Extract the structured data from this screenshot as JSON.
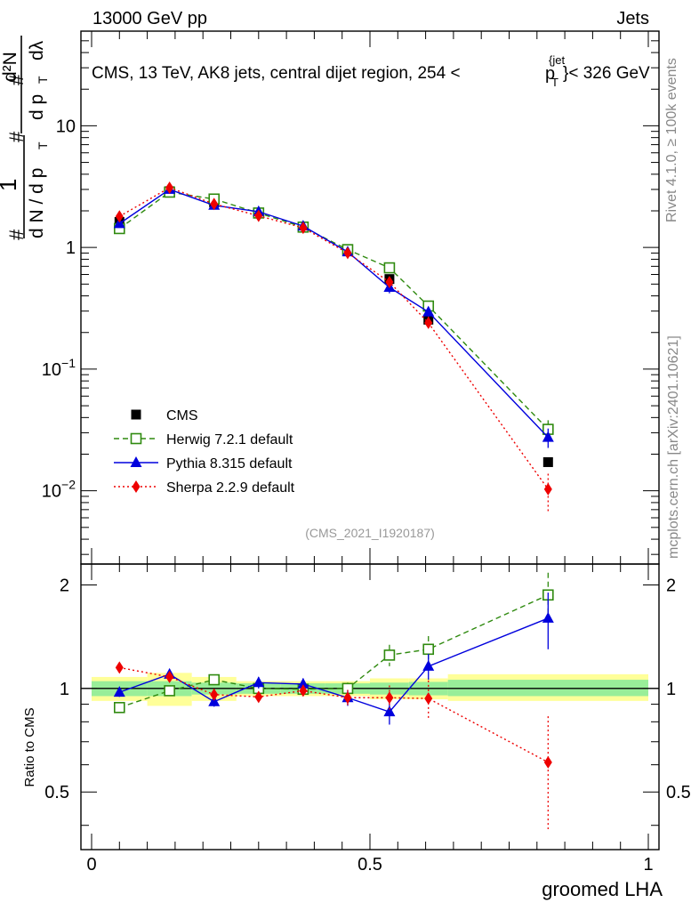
{
  "header": {
    "energy_label": "13000 GeV pp",
    "category_label": "Jets"
  },
  "side_labels": {
    "rivet": "Rivet 4.1.0, ≥ 100k events",
    "mcplots": "mcplots.cern.ch [arXiv:2401.10621]"
  },
  "chart_data": [
    {
      "type": "line",
      "title": "CMS, 13 TeV, AK8 jets, central dijet region, 254 < p_T^{jet} < 326 GeV",
      "title_parts": {
        "prefix": "CMS, 13 TeV, AK8 jets, central dijet region, 254 <",
        "p": "p",
        "sub": "T",
        "sup": "{jet",
        "suffix": "}< 326 GeV"
      },
      "ylabel": "1/dN/dp_T  d²N/dp_T dλ",
      "ylabel_glyphs": {
        "hash": "#",
        "one": "1",
        "dN": "d N / d p",
        "T": "T",
        "d2N": "d²N",
        "dpT": "d p",
        "dlam": "dλ"
      },
      "xlabel": "groomed LHA",
      "xlim": [
        0,
        1
      ],
      "ylim": [
        0.0025,
        60
      ],
      "yscale": "log",
      "y_ticks": [
        {
          "value": 0.01,
          "base": "10",
          "exp": "−2"
        },
        {
          "value": 0.1,
          "base": "10",
          "exp": "−1"
        },
        {
          "value": 1,
          "base": "1",
          "exp": ""
        },
        {
          "value": 10,
          "base": "10",
          "exp": ""
        }
      ],
      "watermark": "(CMS_2021_I1920187)",
      "x": [
        0.05,
        0.14,
        0.22,
        0.3,
        0.38,
        0.46,
        0.535,
        0.605,
        0.82
      ],
      "series": [
        {
          "name": "CMS",
          "marker": "square",
          "color": "#000000",
          "dash": "none",
          "values": [
            1.62,
            2.9,
            2.35,
            1.92,
            1.48,
            0.96,
            0.55,
            0.255,
            0.0172
          ],
          "errors": [
            0,
            0,
            0,
            0,
            0,
            0,
            0,
            0,
            0
          ]
        },
        {
          "name": "Herwig 7.2.1 default",
          "marker": "open-square",
          "color": "#2f8a0f",
          "dash": "6,4",
          "values": [
            1.43,
            2.85,
            2.5,
            1.92,
            1.47,
            0.96,
            0.68,
            0.33,
            0.032
          ],
          "errors": [
            0.05,
            0.08,
            0.08,
            0.06,
            0.05,
            0.04,
            0.05,
            0.03,
            0.006
          ]
        },
        {
          "name": "Pythia 8.315 default",
          "marker": "triangle",
          "color": "#0000dd",
          "dash": "none",
          "values": [
            1.57,
            3.0,
            2.22,
            1.97,
            1.5,
            0.92,
            0.47,
            0.295,
            0.0275
          ],
          "errors": [
            0.05,
            0.08,
            0.07,
            0.06,
            0.05,
            0.04,
            0.05,
            0.03,
            0.005
          ]
        },
        {
          "name": "Sherpa 2.2.9 default",
          "marker": "diamond",
          "color": "#ee0000",
          "dash": "2,3",
          "values": [
            1.8,
            3.1,
            2.28,
            1.82,
            1.45,
            0.9,
            0.52,
            0.24,
            0.0103
          ],
          "errors": [
            0.05,
            0.09,
            0.07,
            0.06,
            0.05,
            0.04,
            0.05,
            0.03,
            0.0035
          ]
        }
      ],
      "legend": [
        "CMS",
        "Herwig 7.2.1 default",
        "Pythia 8.315 default",
        "Sherpa 2.2.9 default"
      ],
      "legend_position": "bottom-left"
    },
    {
      "type": "line",
      "title": "",
      "ylabel": "Ratio to CMS",
      "xlabel": "groomed LHA",
      "xlim": [
        0,
        1
      ],
      "ylim": [
        0.34,
        2.3
      ],
      "yscale": "log",
      "y_ticks": [
        {
          "value": 0.5,
          "label": "0.5"
        },
        {
          "value": 1,
          "label": "1"
        },
        {
          "value": 2,
          "label": "2"
        }
      ],
      "x_ticks": [
        {
          "value": 0,
          "label": "0"
        },
        {
          "value": 0.5,
          "label": "0.5"
        },
        {
          "value": 1,
          "label": "1"
        }
      ],
      "reference_line": 1,
      "uncertainty_bands": [
        {
          "x": [
            0.0,
            0.1
          ],
          "stat": [
            0.95,
            1.05
          ],
          "total": [
            0.92,
            1.08
          ]
        },
        {
          "x": [
            0.1,
            0.18
          ],
          "stat": [
            0.95,
            1.05
          ],
          "total": [
            0.89,
            1.11
          ]
        },
        {
          "x": [
            0.18,
            0.26
          ],
          "stat": [
            0.96,
            1.04
          ],
          "total": [
            0.92,
            1.08
          ]
        },
        {
          "x": [
            0.26,
            0.34
          ],
          "stat": [
            0.965,
            1.035
          ],
          "total": [
            0.95,
            1.05
          ]
        },
        {
          "x": [
            0.34,
            0.42
          ],
          "stat": [
            0.965,
            1.035
          ],
          "total": [
            0.95,
            1.05
          ]
        },
        {
          "x": [
            0.42,
            0.5
          ],
          "stat": [
            0.965,
            1.035
          ],
          "total": [
            0.95,
            1.05
          ]
        },
        {
          "x": [
            0.5,
            0.57
          ],
          "stat": [
            0.96,
            1.04
          ],
          "total": [
            0.93,
            1.07
          ]
        },
        {
          "x": [
            0.57,
            0.64
          ],
          "stat": [
            0.955,
            1.045
          ],
          "total": [
            0.93,
            1.07
          ]
        },
        {
          "x": [
            0.64,
            1.0
          ],
          "stat": [
            0.95,
            1.06
          ],
          "total": [
            0.92,
            1.1
          ]
        }
      ],
      "x": [
        0.05,
        0.14,
        0.22,
        0.3,
        0.38,
        0.46,
        0.535,
        0.605,
        0.82
      ],
      "series": [
        {
          "name": "Herwig 7.2.1 default",
          "marker": "open-square",
          "color": "#2f8a0f",
          "dash": "6,4",
          "values": [
            0.88,
            0.985,
            1.06,
            1.0,
            0.995,
            1.0,
            1.25,
            1.3,
            1.87
          ],
          "errors": [
            0.03,
            0.03,
            0.03,
            0.03,
            0.03,
            0.04,
            0.09,
            0.12,
            0.3
          ]
        },
        {
          "name": "Pythia 8.315 default",
          "marker": "triangle",
          "color": "#0000dd",
          "dash": "none",
          "values": [
            0.975,
            1.1,
            0.915,
            1.04,
            1.03,
            0.94,
            0.855,
            1.16,
            1.6
          ],
          "errors": [
            0.03,
            0.03,
            0.03,
            0.04,
            0.04,
            0.05,
            0.07,
            0.1,
            0.3
          ]
        },
        {
          "name": "Sherpa 2.2.9 default",
          "marker": "diamond",
          "color": "#ee0000",
          "dash": "2,3",
          "values": [
            1.15,
            1.08,
            0.96,
            0.945,
            0.985,
            0.94,
            0.94,
            0.935,
            0.61
          ],
          "errors": [
            0.03,
            0.03,
            0.03,
            0.03,
            0.04,
            0.05,
            0.08,
            0.12,
            0.22
          ]
        }
      ]
    }
  ]
}
